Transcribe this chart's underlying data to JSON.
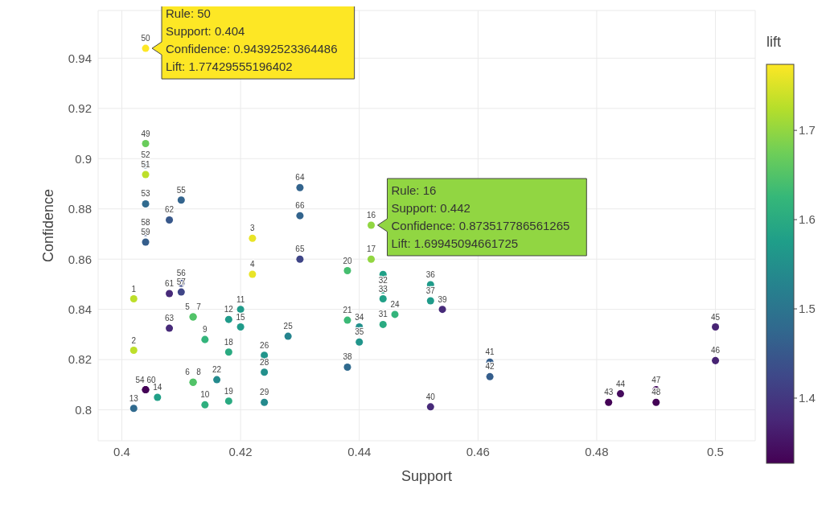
{
  "chart_data": {
    "type": "scatter",
    "xlabel": "Support",
    "ylabel": "Confidence",
    "clabel": "lift",
    "xlim": [
      0.396,
      0.5067
    ],
    "xticks": [
      0.4,
      0.42,
      0.44,
      0.46,
      0.48,
      0.5
    ],
    "ylim": [
      0.7877,
      0.959
    ],
    "yticks": [
      0.8,
      0.82,
      0.84,
      0.86,
      0.88,
      0.9,
      0.92,
      0.94
    ],
    "clim": [
      1.327,
      1.774
    ],
    "cticks": [
      1.4,
      1.5,
      1.6,
      1.7
    ],
    "grid": true,
    "marker": "circle",
    "series": [
      {
        "x": [
          0.402,
          0.402,
          0.422,
          0.422,
          0.412,
          0.412,
          0.412,
          0.412,
          0.414,
          0.414,
          0.42,
          0.418,
          0.402,
          0.406,
          0.42,
          0.442,
          0.442,
          0.418,
          0.418,
          0.438,
          0.438,
          0.416,
          0.446,
          0.428,
          0.424,
          0.424,
          0.424,
          0.444,
          0.444,
          0.444,
          0.444,
          0.44,
          0.44,
          0.452,
          0.452,
          0.438,
          0.454,
          0.452,
          0.462,
          0.462,
          0.482,
          0.484,
          0.5,
          0.5,
          0.49,
          0.49,
          0.404,
          0.404,
          0.404,
          0.404,
          0.404,
          0.404,
          0.41,
          0.41,
          0.41,
          0.404,
          0.404,
          0.404,
          0.408,
          0.408,
          0.408,
          0.43,
          0.43,
          0.43
        ],
        "values": [
          0.8442,
          0.8237,
          0.8683,
          0.854,
          0.837,
          0.811,
          0.837,
          0.811,
          0.828,
          0.802,
          0.84,
          0.836,
          0.8006,
          0.805,
          0.833,
          0.873517786561265,
          0.86,
          0.823,
          0.8035,
          0.8554,
          0.8357,
          0.812,
          0.838,
          0.8293,
          0.8217,
          0.815,
          0.803,
          0.834,
          0.8539,
          0.8477,
          0.8442,
          0.833,
          0.827,
          0.8498,
          0.8434,
          0.817,
          0.84,
          0.8012,
          0.819,
          0.8132,
          0.803,
          0.8064,
          0.833,
          0.8196,
          0.808,
          0.803,
          0.906,
          0.94392523364486,
          0.8937,
          0.8975,
          0.882,
          0.808,
          0.8835,
          0.8504,
          0.8469,
          0.8706,
          0.8668,
          0.808,
          0.8463,
          0.8756,
          0.8325,
          0.8885,
          0.86,
          0.8773
        ],
        "cvalues": [
          1.73,
          1.73,
          1.76,
          1.76,
          1.65,
          1.65,
          1.65,
          1.65,
          1.62,
          1.61,
          1.57,
          1.57,
          1.48,
          1.58,
          1.57,
          1.69945094661725,
          1.7,
          1.6,
          1.6,
          1.64,
          1.63,
          1.54,
          1.62,
          1.53,
          1.56,
          1.55,
          1.54,
          1.6,
          1.58,
          1.58,
          1.58,
          1.55,
          1.56,
          1.57,
          1.57,
          1.48,
          1.38,
          1.38,
          1.46,
          1.46,
          1.33,
          1.34,
          1.37,
          1.37,
          1.34,
          1.33,
          1.67,
          1.77429555196402,
          1.73,
          1.48,
          1.48,
          1.33,
          1.47,
          1.43,
          1.42,
          1.44,
          1.46,
          1.33,
          1.38,
          1.45,
          1.38,
          1.47,
          1.42,
          1.47
        ]
      }
    ],
    "annotations": [
      {
        "text": "Rule: 50\nSupport: 0.404\nConfidence: 0.94392523364486\nLift: 1.77429555196402",
        "x": 0.404,
        "y": 0.94392523364486
      },
      {
        "text": "Rule: 16\nSupport: 0.442\nConfidence: 0.873517786561265\nLift: 1.69945094661725",
        "x": 0.442,
        "y": 0.873517786561265
      },
      {
        "text": "1",
        "x": 0.402,
        "y": 0.8442
      },
      {
        "text": "2",
        "x": 0.402,
        "y": 0.8237
      },
      {
        "text": "3",
        "x": 0.422,
        "y": 0.8683
      },
      {
        "text": "4",
        "x": 0.422,
        "y": 0.854
      },
      {
        "text": "5",
        "x": 0.412,
        "y": 0.837
      },
      {
        "text": "6",
        "x": 0.412,
        "y": 0.811
      },
      {
        "text": "7",
        "x": 0.412,
        "y": 0.837
      },
      {
        "text": "8",
        "x": 0.412,
        "y": 0.811
      },
      {
        "text": "9",
        "x": 0.414,
        "y": 0.828
      },
      {
        "text": "10",
        "x": 0.414,
        "y": 0.802
      },
      {
        "text": "11",
        "x": 0.42,
        "y": 0.84
      },
      {
        "text": "12",
        "x": 0.418,
        "y": 0.836
      },
      {
        "text": "13",
        "x": 0.402,
        "y": 0.8006
      },
      {
        "text": "14",
        "x": 0.406,
        "y": 0.805
      },
      {
        "text": "15",
        "x": 0.42,
        "y": 0.833
      },
      {
        "text": "16",
        "x": 0.442,
        "y": 0.873517786561265
      },
      {
        "text": "17",
        "x": 0.442,
        "y": 0.86
      },
      {
        "text": "18",
        "x": 0.418,
        "y": 0.823
      },
      {
        "text": "19",
        "x": 0.418,
        "y": 0.8035
      },
      {
        "text": "20",
        "x": 0.438,
        "y": 0.8554
      },
      {
        "text": "21",
        "x": 0.438,
        "y": 0.8357
      },
      {
        "text": "22",
        "x": 0.416,
        "y": 0.812
      },
      {
        "text": "24",
        "x": 0.446,
        "y": 0.838
      },
      {
        "text": "25",
        "x": 0.428,
        "y": 0.8293
      },
      {
        "text": "26",
        "x": 0.424,
        "y": 0.8217
      },
      {
        "text": "28",
        "x": 0.424,
        "y": 0.815
      },
      {
        "text": "29",
        "x": 0.424,
        "y": 0.803
      },
      {
        "text": "31",
        "x": 0.444,
        "y": 0.834
      },
      {
        "text": "32",
        "x": 0.444,
        "y": 0.8477
      },
      {
        "text": "33",
        "x": 0.444,
        "y": 0.8442
      },
      {
        "text": "34",
        "x": 0.44,
        "y": 0.833
      },
      {
        "text": "35",
        "x": 0.44,
        "y": 0.827
      },
      {
        "text": "36",
        "x": 0.452,
        "y": 0.8498
      },
      {
        "text": "37",
        "x": 0.452,
        "y": 0.8434
      },
      {
        "text": "38",
        "x": 0.438,
        "y": 0.817
      },
      {
        "text": "39",
        "x": 0.454,
        "y": 0.84
      },
      {
        "text": "40",
        "x": 0.452,
        "y": 0.8012
      },
      {
        "text": "41",
        "x": 0.462,
        "y": 0.819
      },
      {
        "text": "42",
        "x": 0.462,
        "y": 0.8132
      },
      {
        "text": "43",
        "x": 0.482,
        "y": 0.803
      },
      {
        "text": "44",
        "x": 0.484,
        "y": 0.8064
      },
      {
        "text": "45",
        "x": 0.5,
        "y": 0.833
      },
      {
        "text": "46",
        "x": 0.5,
        "y": 0.8196
      },
      {
        "text": "47",
        "x": 0.49,
        "y": 0.808
      },
      {
        "text": "48",
        "x": 0.49,
        "y": 0.803
      },
      {
        "text": "49",
        "x": 0.404,
        "y": 0.906
      },
      {
        "text": "50",
        "x": 0.404,
        "y": 0.94392523364486
      },
      {
        "text": "51",
        "x": 0.404,
        "y": 0.8937
      },
      {
        "text": "52",
        "x": 0.404,
        "y": 0.8975
      },
      {
        "text": "53",
        "x": 0.404,
        "y": 0.882
      },
      {
        "text": "54",
        "x": 0.404,
        "y": 0.808
      },
      {
        "text": "55",
        "x": 0.41,
        "y": 0.8835
      },
      {
        "text": "56",
        "x": 0.41,
        "y": 0.8504
      },
      {
        "text": "57",
        "x": 0.41,
        "y": 0.8469
      },
      {
        "text": "58",
        "x": 0.404,
        "y": 0.8706
      },
      {
        "text": "59",
        "x": 0.404,
        "y": 0.8668
      },
      {
        "text": "60",
        "x": 0.404,
        "y": 0.808
      },
      {
        "text": "61",
        "x": 0.408,
        "y": 0.8463
      },
      {
        "text": "62",
        "x": 0.408,
        "y": 0.8756
      },
      {
        "text": "63",
        "x": 0.408,
        "y": 0.8325
      },
      {
        "text": "64",
        "x": 0.43,
        "y": 0.8885
      },
      {
        "text": "65",
        "x": 0.43,
        "y": 0.86
      },
      {
        "text": "66",
        "x": 0.43,
        "y": 0.8773
      }
    ]
  }
}
